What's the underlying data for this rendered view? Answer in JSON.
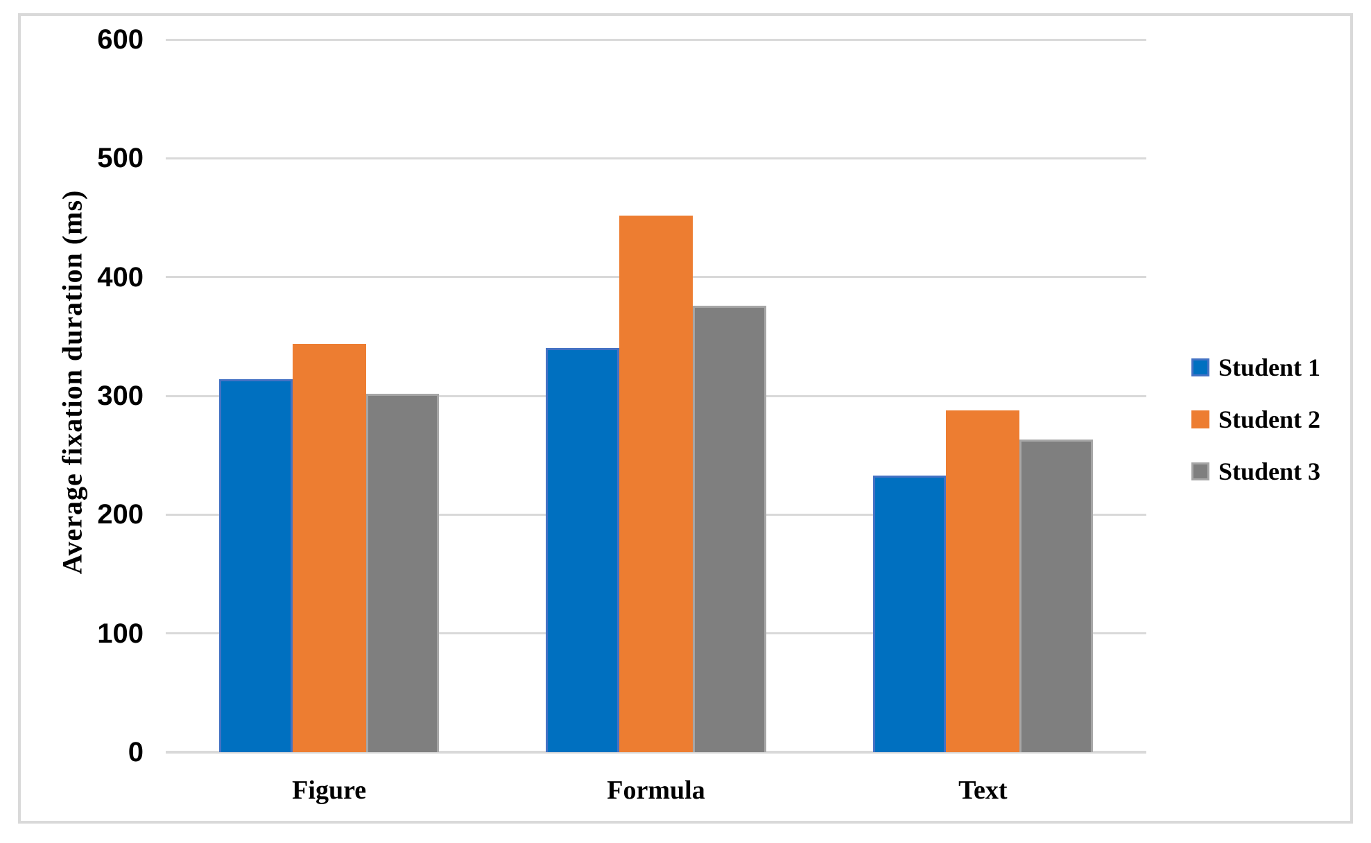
{
  "chart_data": {
    "type": "bar",
    "title": "",
    "ylabel": "Average fixation duration (ms)",
    "xlabel": "",
    "categories": [
      "Figure",
      "Formula",
      "Text"
    ],
    "series": [
      {
        "name": "Student 1",
        "color": "#0070C0",
        "border_color": "#4472C4",
        "values": [
          314,
          340,
          233
        ]
      },
      {
        "name": "Student 2",
        "color": "#ED7D31",
        "border_color": "#ED7D31",
        "values": [
          344,
          452,
          288
        ]
      },
      {
        "name": "Student 3",
        "color": "#7F7F7F",
        "border_color": "#A6A6A6",
        "values": [
          302,
          376,
          263
        ]
      }
    ],
    "ylim": [
      0,
      600
    ],
    "yticks": [
      0,
      100,
      200,
      300,
      400,
      500,
      600
    ],
    "grid": true,
    "gridline_color": "#D9D9D9",
    "frame_color": "#D9D9D9",
    "legend_position": "right"
  }
}
